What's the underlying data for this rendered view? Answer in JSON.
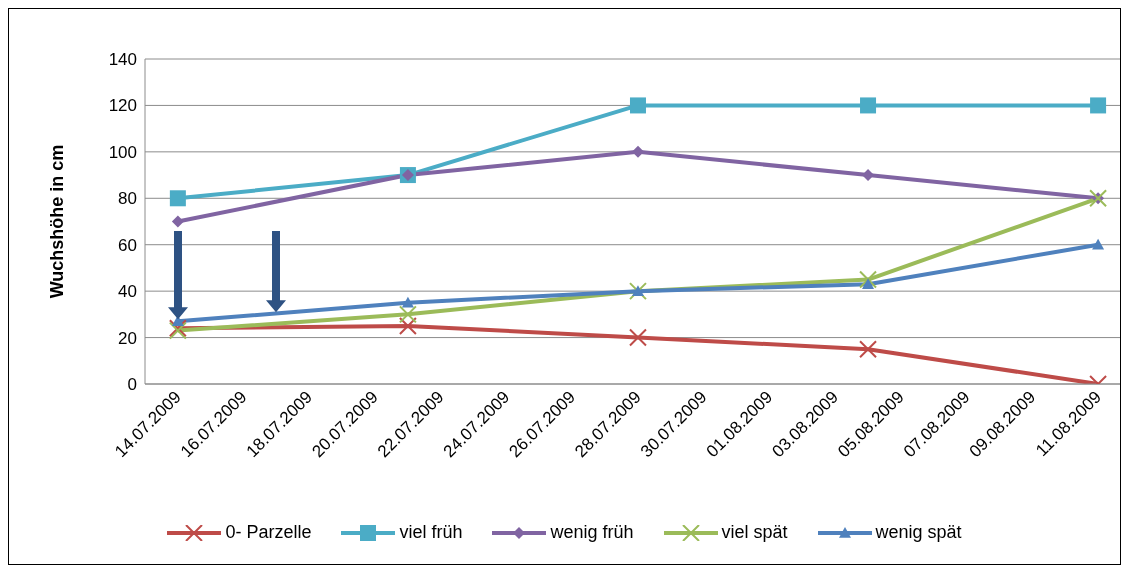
{
  "chart_data": {
    "type": "line",
    "ylabel": "Wuchshöhe in cm",
    "x": [
      "2009-07-14",
      "2009-07-21",
      "2009-07-28",
      "2009-08-04",
      "2009-08-11"
    ],
    "series": [
      {
        "name": "0- Parzelle",
        "color": "#be4b48",
        "marker": "cross",
        "values": [
          24,
          25,
          20,
          15,
          0
        ]
      },
      {
        "name": "viel früh",
        "color": "#4bacc6",
        "marker": "square",
        "values": [
          80,
          90,
          120,
          120,
          120
        ]
      },
      {
        "name": "wenig früh",
        "color": "#8064a2",
        "marker": "diamond",
        "values": [
          70,
          90,
          100,
          90,
          80
        ]
      },
      {
        "name": "viel spät",
        "color": "#9bbb59",
        "marker": "cross",
        "values": [
          23,
          30,
          40,
          45,
          80
        ]
      },
      {
        "name": "wenig spät",
        "color": "#4f81bd",
        "marker": "triangle",
        "values": [
          27,
          35,
          40,
          43,
          60
        ]
      }
    ],
    "xlim": [
      "2009-07-13",
      "2009-08-11T16:00"
    ],
    "xticks": [
      {
        "value": "2009-07-14",
        "label": "14.07.2009"
      },
      {
        "value": "2009-07-16",
        "label": "16.07.2009"
      },
      {
        "value": "2009-07-18",
        "label": "18.07.2009"
      },
      {
        "value": "2009-07-20",
        "label": "20.07.2009"
      },
      {
        "value": "2009-07-22",
        "label": "22.07.2009"
      },
      {
        "value": "2009-07-24",
        "label": "24.07.2009"
      },
      {
        "value": "2009-07-26",
        "label": "26.07.2009"
      },
      {
        "value": "2009-07-28",
        "label": "28.07.2009"
      },
      {
        "value": "2009-07-30",
        "label": "30.07.2009"
      },
      {
        "value": "2009-08-01",
        "label": "01.08.2009"
      },
      {
        "value": "2009-08-03",
        "label": "03.08.2009"
      },
      {
        "value": "2009-08-05",
        "label": "05.08.2009"
      },
      {
        "value": "2009-08-07",
        "label": "07.08.2009"
      },
      {
        "value": "2009-08-09",
        "label": "09.08.2009"
      },
      {
        "value": "2009-08-11",
        "label": "11.08.2009"
      }
    ],
    "ylim": [
      0,
      140
    ],
    "yticks": [
      0,
      20,
      40,
      60,
      80,
      100,
      120,
      140
    ],
    "grid": "y",
    "legend": "bottom",
    "line_style": "solid"
  }
}
